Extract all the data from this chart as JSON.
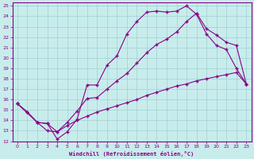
{
  "xlabel": "Windchill (Refroidissement éolien,°C)",
  "ylabel": "",
  "background_color": "#c8ecec",
  "line_color": "#880088",
  "xlim": [
    -0.5,
    23.5
  ],
  "ylim": [
    12,
    25.3
  ],
  "xticks": [
    0,
    1,
    2,
    3,
    4,
    5,
    6,
    7,
    8,
    9,
    10,
    11,
    12,
    13,
    14,
    15,
    16,
    17,
    18,
    19,
    20,
    21,
    22,
    23
  ],
  "yticks": [
    12,
    13,
    14,
    15,
    16,
    17,
    18,
    19,
    20,
    21,
    22,
    23,
    24,
    25
  ],
  "line1_x": [
    0,
    1,
    2,
    3,
    4,
    5,
    6,
    7,
    8,
    9,
    10,
    11,
    12,
    13,
    14,
    15,
    16,
    17,
    18,
    19,
    20,
    21,
    22,
    23
  ],
  "line1_y": [
    15.6,
    14.8,
    13.8,
    13.7,
    12.2,
    12.9,
    14.1,
    17.4,
    17.4,
    19.3,
    20.2,
    22.3,
    23.5,
    24.4,
    24.5,
    24.4,
    24.5,
    25.0,
    24.2,
    22.3,
    21.2,
    20.8,
    19.0,
    17.5
  ],
  "line2_x": [
    0,
    2,
    3,
    4,
    5,
    6,
    7,
    8,
    9,
    10,
    11,
    12,
    13,
    14,
    15,
    16,
    17,
    18,
    19,
    20,
    21,
    22,
    23
  ],
  "line2_y": [
    15.6,
    13.8,
    13.7,
    12.9,
    13.8,
    14.9,
    16.1,
    16.2,
    17.0,
    17.8,
    18.5,
    19.5,
    20.5,
    21.3,
    21.8,
    22.5,
    23.5,
    24.3,
    22.8,
    22.2,
    21.5,
    21.2,
    17.5
  ],
  "line3_x": [
    0,
    1,
    2,
    3,
    4,
    5,
    6,
    7,
    8,
    9,
    10,
    11,
    12,
    13,
    14,
    15,
    16,
    17,
    18,
    19,
    20,
    21,
    22,
    23
  ],
  "line3_y": [
    15.6,
    14.8,
    13.8,
    13.0,
    12.9,
    13.5,
    14.0,
    14.4,
    14.8,
    15.1,
    15.4,
    15.7,
    16.0,
    16.4,
    16.7,
    17.0,
    17.3,
    17.5,
    17.8,
    18.0,
    18.2,
    18.4,
    18.6,
    17.5
  ]
}
